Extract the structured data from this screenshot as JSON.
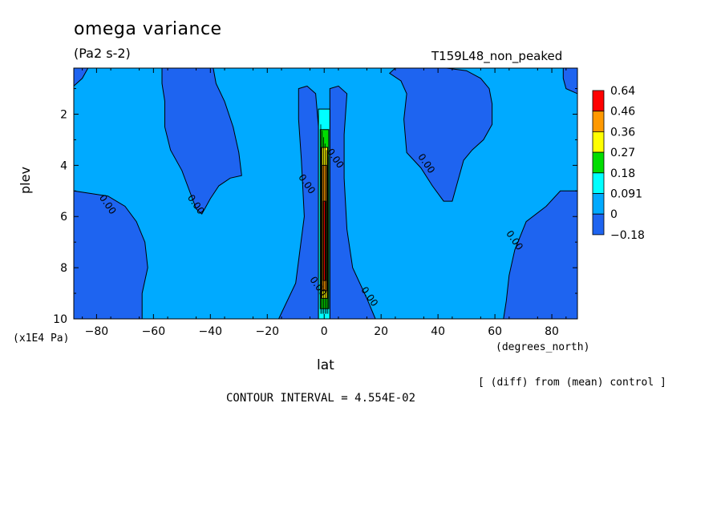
{
  "header": {
    "title": "omega variance",
    "units": "(Pa2 s-2)",
    "run_name": "T159L48_non_peaked"
  },
  "axes": {
    "ylabel": "plev",
    "yunits": "(x1E4 Pa)",
    "xlabel": "lat",
    "xunits": "(degrees_north)"
  },
  "footer": {
    "diff_note": "[ (diff) from (mean) control ]",
    "contour_interval": "CONTOUR INTERVAL = 4.554E-02"
  },
  "colors": {
    "neg": "#1e64f0",
    "zero": "#00aaff",
    "c1": "#00ffff",
    "c2": "#00dd00",
    "c3": "#ffff00",
    "c4": "#ff9900",
    "c5": "#ff0000"
  },
  "chart_data": {
    "type": "heatmap",
    "title": "omega variance",
    "subtitle": "(Pa2 s-2)",
    "xlabel": "lat",
    "ylabel": "plev",
    "xlim": [
      -88,
      89
    ],
    "ylim": [
      10,
      0.2
    ],
    "x_ticks": [
      -80,
      -60,
      -40,
      -20,
      0,
      20,
      40,
      60,
      80
    ],
    "y_ticks": [
      2,
      4,
      6,
      8,
      10
    ],
    "legend": {
      "levels": [
        "0.64",
        "0.46",
        "0.36",
        "0.27",
        "0.18",
        "0.091",
        "0",
        "-0.18"
      ],
      "colors": [
        "#ff0000",
        "#ff9900",
        "#ffff00",
        "#00dd00",
        "#00ffff",
        "#00aaff",
        "#1e64f0"
      ],
      "placement": "right"
    },
    "contour_labels": [
      {
        "text": "0.00",
        "lat": -77,
        "plev": 5.6
      },
      {
        "text": "0.00",
        "lat": -46,
        "plev": 5.6
      },
      {
        "text": "0.00",
        "lat": -7,
        "plev": 4.8
      },
      {
        "text": "0.00",
        "lat": 3,
        "plev": 3.8
      },
      {
        "text": "0.00",
        "lat": -3,
        "plev": 8.8
      },
      {
        "text": "0.00",
        "lat": 15,
        "plev": 9.2
      },
      {
        "text": "0.00",
        "lat": 35,
        "plev": 4.0
      },
      {
        "text": "0.00",
        "lat": 66,
        "plev": 7.0
      }
    ],
    "regions": [
      {
        "name": "background",
        "value_class": "zero"
      },
      {
        "name": "sh-upper-tongue",
        "value_class": "neg",
        "points": [
          [
            -57,
            0.2
          ],
          [
            -39,
            0.2
          ],
          [
            -38,
            0.8
          ],
          [
            -35,
            1.5
          ],
          [
            -32,
            2.5
          ],
          [
            -30,
            3.5
          ],
          [
            -29,
            4.4
          ],
          [
            -33,
            4.5
          ],
          [
            -37,
            4.8
          ],
          [
            -40,
            5.3
          ],
          [
            -43,
            5.9
          ],
          [
            -45,
            5.7
          ],
          [
            -47,
            5.1
          ],
          [
            -50,
            4.2
          ],
          [
            -54,
            3.4
          ],
          [
            -56,
            2.5
          ],
          [
            -56,
            1.5
          ],
          [
            -57,
            0.8
          ]
        ]
      },
      {
        "name": "nh-upper-tongue",
        "value_class": "neg",
        "points": [
          [
            25,
            0.2
          ],
          [
            43,
            0.2
          ],
          [
            50,
            0.3
          ],
          [
            55,
            0.6
          ],
          [
            58,
            1.0
          ],
          [
            59,
            1.6
          ],
          [
            59,
            2.4
          ],
          [
            56,
            3.0
          ],
          [
            52,
            3.4
          ],
          [
            49,
            3.8
          ],
          [
            47,
            4.6
          ],
          [
            45,
            5.4
          ],
          [
            42,
            5.4
          ],
          [
            38,
            4.8
          ],
          [
            34,
            4.1
          ],
          [
            29,
            3.5
          ],
          [
            28,
            2.2
          ],
          [
            29,
            1.2
          ],
          [
            27,
            0.7
          ],
          [
            23,
            0.4
          ]
        ]
      },
      {
        "name": "sh-lower-left",
        "value_class": "neg",
        "points": [
          [
            -88,
            5.0
          ],
          [
            -82,
            5.1
          ],
          [
            -76,
            5.2
          ],
          [
            -70,
            5.6
          ],
          [
            -66,
            6.2
          ],
          [
            -63,
            7.0
          ],
          [
            -62,
            8.0
          ],
          [
            -64,
            9.0
          ],
          [
            -64,
            10.0
          ],
          [
            -88,
            10.0
          ]
        ]
      },
      {
        "name": "nh-lower-right",
        "value_class": "neg",
        "points": [
          [
            89,
            5.0
          ],
          [
            83,
            5.0
          ],
          [
            78,
            5.6
          ],
          [
            71,
            6.2
          ],
          [
            67,
            7.3
          ],
          [
            65,
            8.3
          ],
          [
            64,
            9.3
          ],
          [
            63,
            10.0
          ],
          [
            89,
            10.0
          ]
        ]
      },
      {
        "name": "nw-corner",
        "value_class": "neg",
        "points": [
          [
            -88,
            0.2
          ],
          [
            -83,
            0.2
          ],
          [
            -85,
            0.6
          ],
          [
            -88,
            0.9
          ]
        ]
      },
      {
        "name": "ne-corner",
        "value_class": "neg",
        "points": [
          [
            84,
            0.2
          ],
          [
            89,
            0.2
          ],
          [
            89,
            1.2
          ],
          [
            85,
            1.0
          ],
          [
            84,
            0.6
          ]
        ]
      },
      {
        "name": "equatorial-band",
        "value_class": "neg",
        "points": [
          [
            -9,
            1.0
          ],
          [
            -6,
            0.9
          ],
          [
            -3,
            1.2
          ],
          [
            -2,
            2.5
          ],
          [
            -2,
            4.5
          ],
          [
            -2,
            7.5
          ],
          [
            -2,
            10.0
          ],
          [
            -16,
            10.0
          ],
          [
            -10,
            8.6
          ],
          [
            -7,
            6.0
          ],
          [
            -8,
            3.8
          ],
          [
            -9,
            2.2
          ]
        ]
      },
      {
        "name": "equatorial-band-east",
        "value_class": "neg",
        "points": [
          [
            2,
            1.0
          ],
          [
            5,
            0.9
          ],
          [
            8,
            1.2
          ],
          [
            7,
            2.8
          ],
          [
            7,
            4.5
          ],
          [
            8,
            6.5
          ],
          [
            10,
            8.0
          ],
          [
            15,
            9.2
          ],
          [
            18,
            10.0
          ],
          [
            2,
            10.0
          ]
        ]
      },
      {
        "name": "equatorial-spike-cyan",
        "value_class": "c1",
        "points": [
          [
            -2,
            1.8
          ],
          [
            2,
            1.8
          ],
          [
            2,
            10.0
          ],
          [
            -2,
            10.0
          ]
        ]
      },
      {
        "name": "equatorial-spike-green",
        "value_class": "c2",
        "points": [
          [
            -1.4,
            2.6
          ],
          [
            1.6,
            2.6
          ],
          [
            1.6,
            9.6
          ],
          [
            -1.4,
            9.6
          ]
        ]
      },
      {
        "name": "equatorial-spike-yellow",
        "value_class": "c3",
        "points": [
          [
            -1.0,
            3.3
          ],
          [
            1.2,
            3.3
          ],
          [
            1.2,
            9.2
          ],
          [
            -1.0,
            9.2
          ]
        ]
      },
      {
        "name": "equatorial-spike-orange",
        "value_class": "c4",
        "points": [
          [
            -0.7,
            4.0
          ],
          [
            0.9,
            4.0
          ],
          [
            0.9,
            8.9
          ],
          [
            -0.7,
            8.9
          ]
        ]
      },
      {
        "name": "equatorial-spike-red",
        "value_class": "c5",
        "points": [
          [
            -0.3,
            5.4
          ],
          [
            0.5,
            5.4
          ],
          [
            0.5,
            8.5
          ],
          [
            -0.3,
            8.5
          ]
        ]
      }
    ]
  }
}
